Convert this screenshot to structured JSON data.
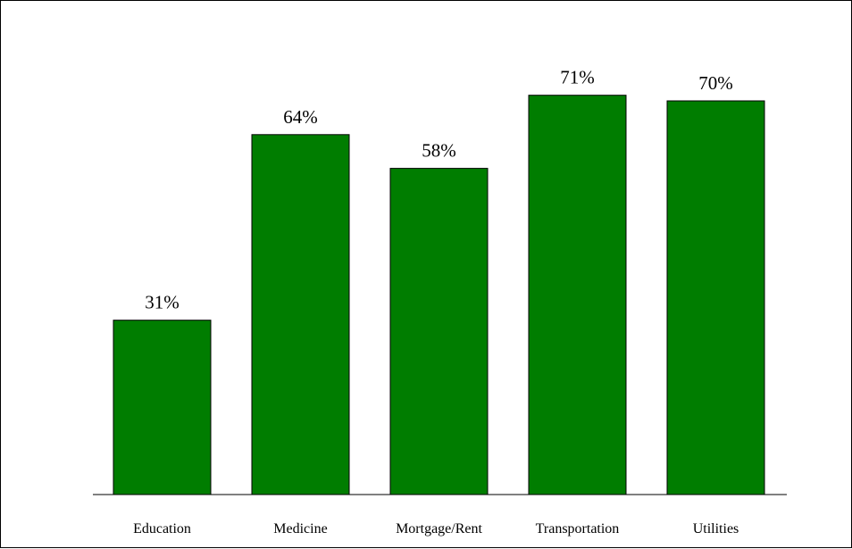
{
  "chart_data": {
    "type": "bar",
    "categories": [
      "Education",
      "Medicine",
      "Mortgage/Rent",
      "Transportation",
      "Utilities"
    ],
    "values": [
      31,
      64,
      58,
      71,
      70
    ],
    "value_labels": [
      "31%",
      "64%",
      "58%",
      "71%",
      "70%"
    ],
    "ylim": [
      0,
      100
    ],
    "title": "",
    "xlabel": "",
    "ylabel": "",
    "grid": false,
    "bar_color": "#007d00"
  }
}
